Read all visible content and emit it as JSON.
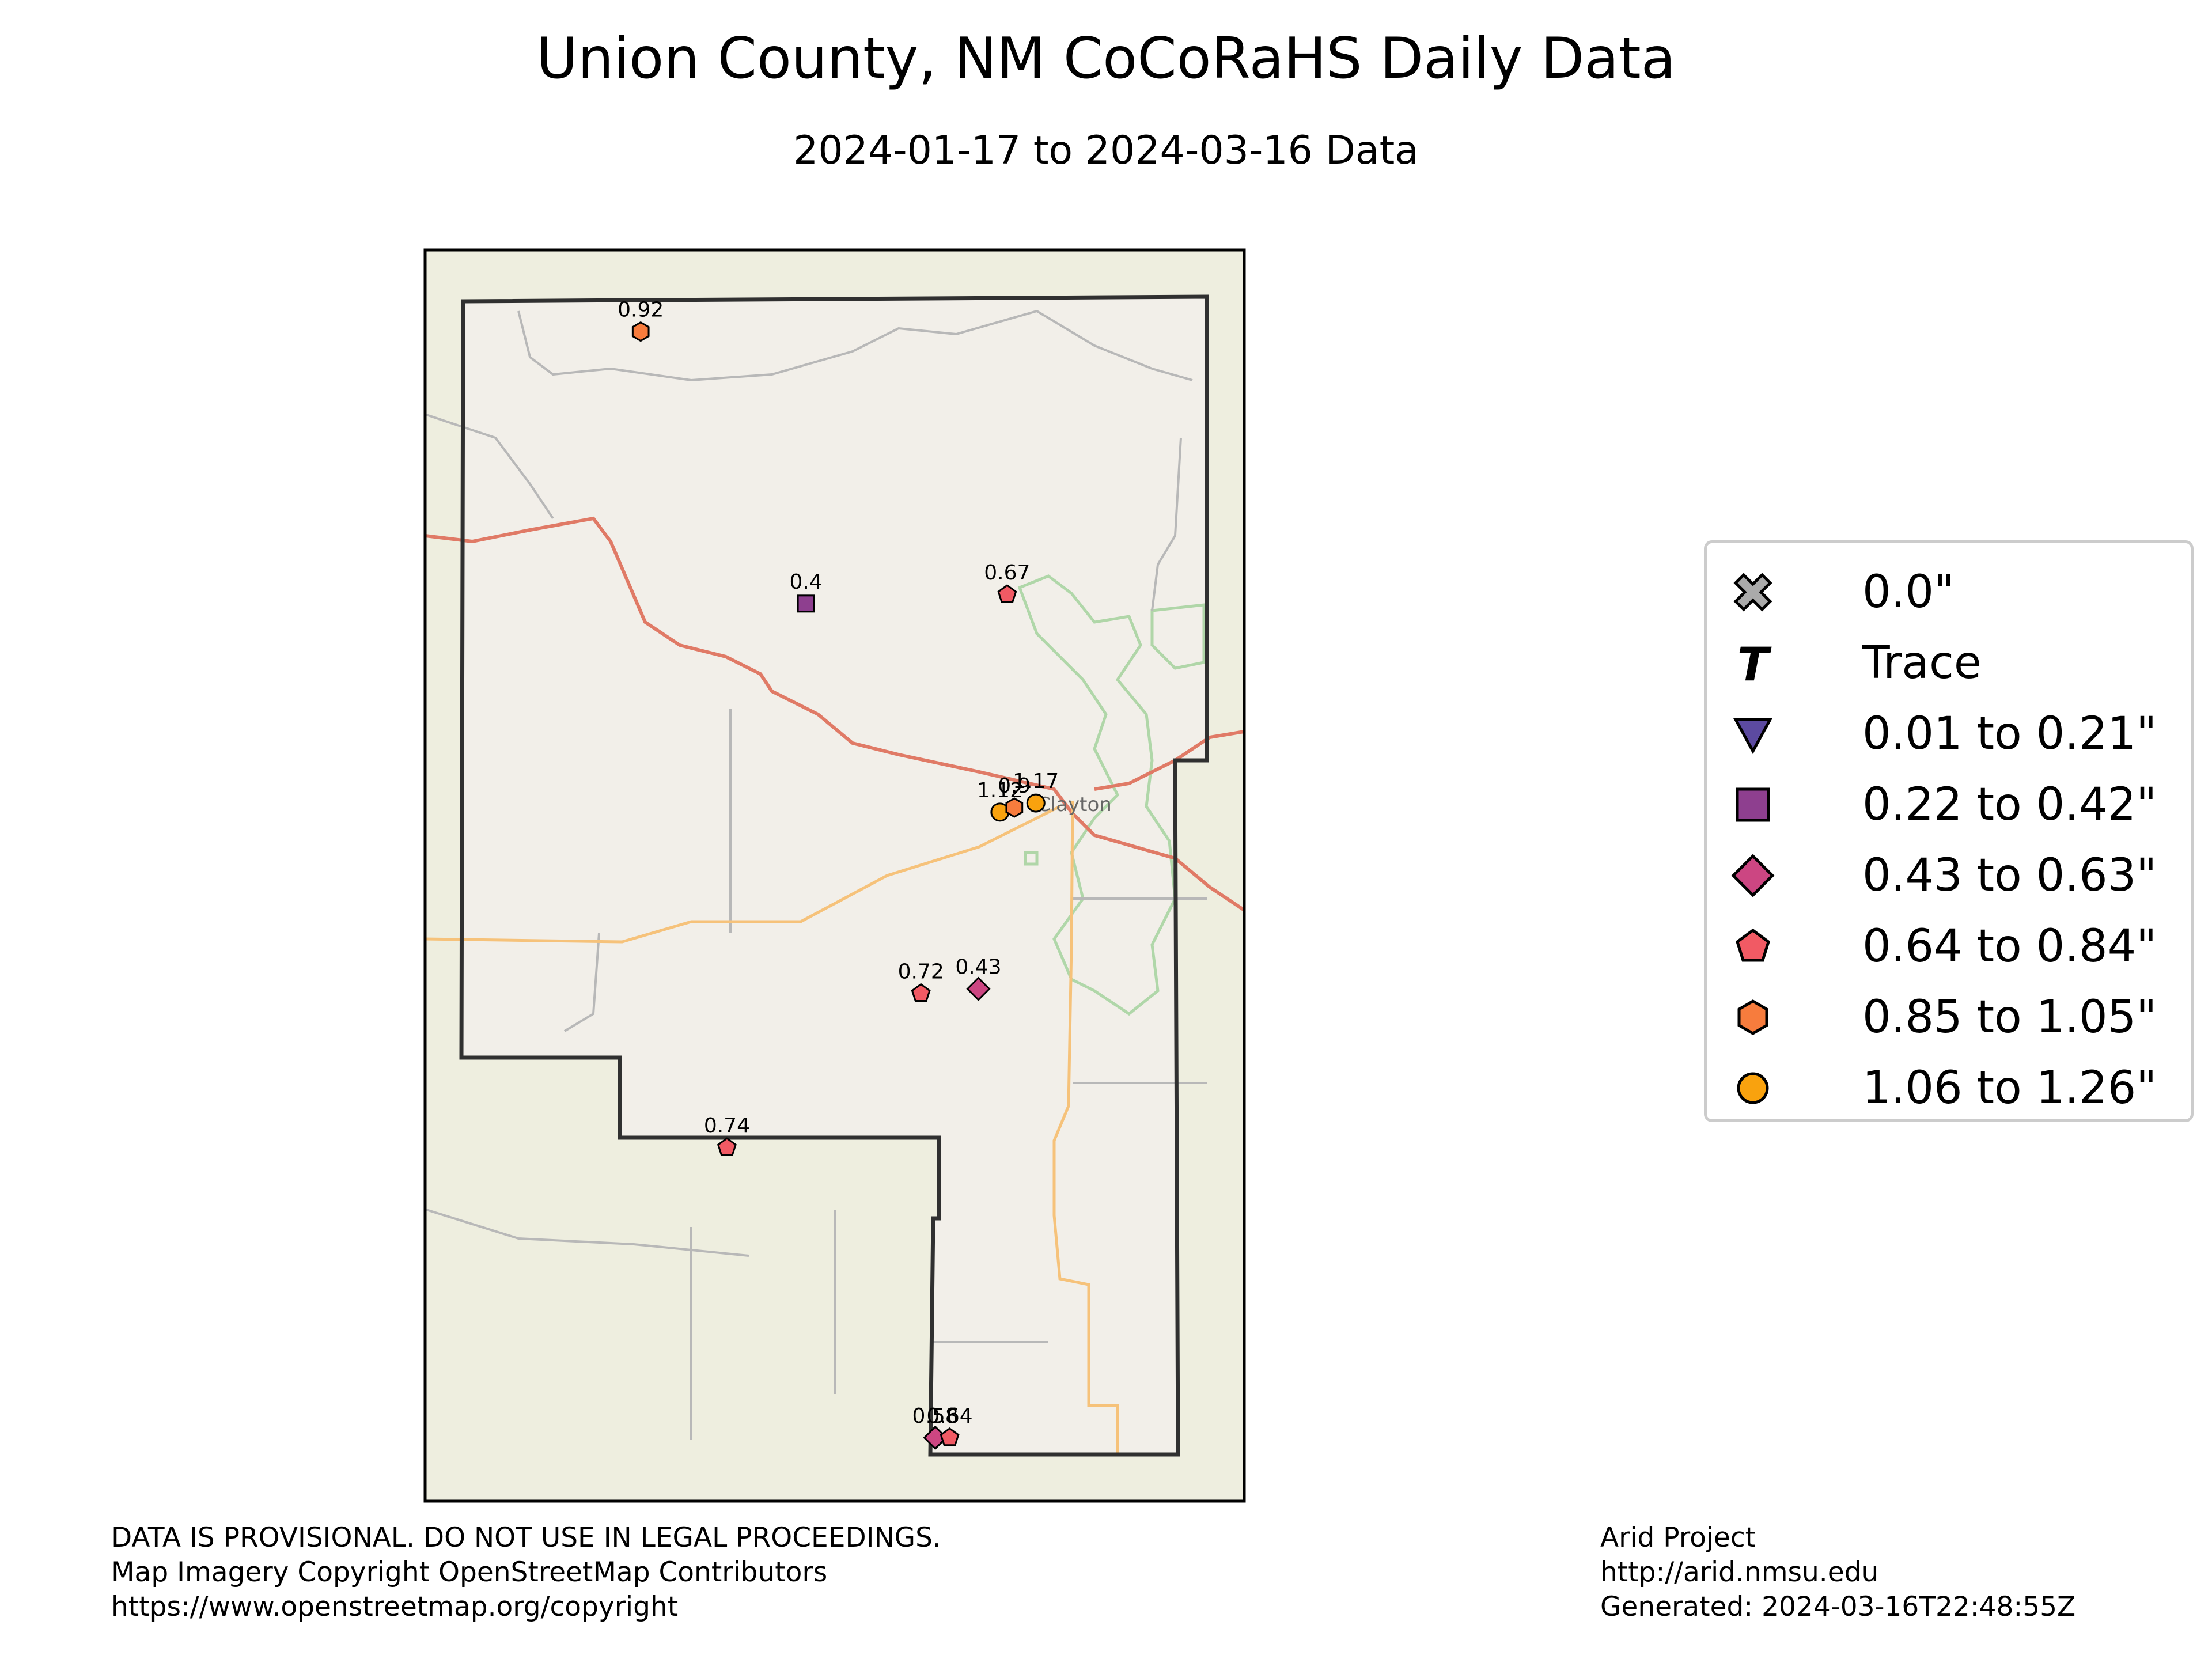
{
  "title": "Union County, NM CoCoRaHS Daily Data",
  "subtitle": "2024-01-17 to 2024-03-16 Data",
  "map": {
    "place_label": "Clayton",
    "stations": [
      {
        "value": "0.92",
        "lon": -103.82,
        "lat": 36.98,
        "category": "0.85 to 1.05\""
      },
      {
        "value": "0.4",
        "lon": -103.59,
        "lat": 36.68,
        "category": "0.22 to 0.42\""
      },
      {
        "value": "0.67",
        "lon": -103.31,
        "lat": 36.69,
        "category": "0.64 to 0.84\""
      },
      {
        "value": "1.12",
        "lon": -103.32,
        "lat": 36.45,
        "category": "1.06 to 1.26\""
      },
      {
        "value": "0.9",
        "lon": -103.3,
        "lat": 36.455,
        "category": "0.85 to 1.05\""
      },
      {
        "value": "1.17",
        "lon": -103.27,
        "lat": 36.46,
        "category": "1.06 to 1.26\""
      },
      {
        "value": "0.72",
        "lon": -103.43,
        "lat": 36.25,
        "category": "0.64 to 0.84\""
      },
      {
        "value": "0.43",
        "lon": -103.35,
        "lat": 36.255,
        "category": "0.43 to 0.63\""
      },
      {
        "value": "0.74",
        "lon": -103.7,
        "lat": 36.08,
        "category": "0.64 to 0.84\""
      },
      {
        "value": "0.58",
        "lon": -103.41,
        "lat": 35.76,
        "category": "0.43 to 0.63\""
      },
      {
        "value": "0.64",
        "lon": -103.39,
        "lat": 35.76,
        "category": "0.64 to 0.84\""
      }
    ]
  },
  "legend": {
    "items": [
      {
        "label": "0.0\"",
        "marker": "x-marker-icon",
        "color": "#aaaaaa"
      },
      {
        "label": "Trace",
        "marker": "trace-t-icon",
        "color": "#000000"
      },
      {
        "label": "0.01 to 0.21\"",
        "marker": "triangle-down-marker-icon",
        "color": "#5c4aa0"
      },
      {
        "label": "0.22 to 0.42\"",
        "marker": "square-marker-icon",
        "color": "#8e3f8f"
      },
      {
        "label": "0.43 to 0.63\"",
        "marker": "diamond-marker-icon",
        "color": "#cc4682"
      },
      {
        "label": "0.64 to 0.84\"",
        "marker": "pentagon-marker-icon",
        "color": "#f15a64"
      },
      {
        "label": "0.85 to 1.05\"",
        "marker": "hexagon-marker-icon",
        "color": "#f77c3d"
      },
      {
        "label": "1.06 to 1.26\"",
        "marker": "circle-marker-icon",
        "color": "#f9a20e"
      }
    ]
  },
  "footer_left": [
    "DATA IS PROVISIONAL. DO NOT USE IN LEGAL PROCEEDINGS.",
    "Map Imagery Copyright OpenStreetMap Contributors",
    "https://www.openstreetmap.org/copyright"
  ],
  "footer_right": [
    "Arid Project",
    "http://arid.nmsu.edu",
    "Generated: 2024-03-16T22:48:55Z"
  ]
}
